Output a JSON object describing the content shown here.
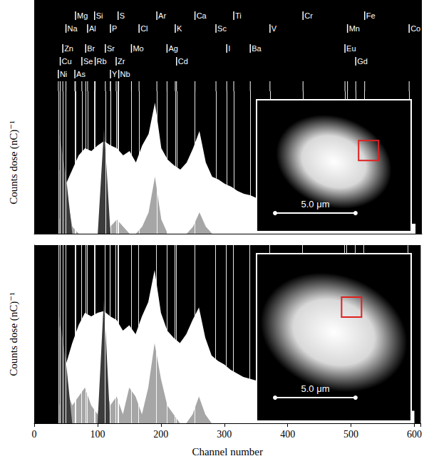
{
  "chart_data": [
    {
      "type": "area",
      "y_label": "Counts dose (nC)⁻¹",
      "x": [
        40,
        50,
        60,
        70,
        80,
        90,
        100,
        110,
        120,
        130,
        140,
        150,
        160,
        170,
        180,
        190,
        200,
        210,
        220,
        230,
        240,
        250,
        260,
        270,
        280,
        290,
        300,
        310,
        320,
        330,
        340,
        350,
        360,
        370,
        380,
        390,
        400,
        410,
        420,
        430,
        440,
        450,
        460,
        470,
        480,
        490,
        500,
        510,
        520,
        530,
        540,
        550,
        560,
        570,
        580,
        590,
        600
      ],
      "series": [
        {
          "color": "#ffffff",
          "values": [
            10,
            35,
            45,
            55,
            60,
            58,
            62,
            65,
            62,
            60,
            55,
            58,
            50,
            62,
            70,
            92,
            60,
            52,
            48,
            45,
            50,
            60,
            72,
            50,
            40,
            38,
            35,
            33,
            30,
            28,
            27,
            25,
            24,
            22,
            21,
            20,
            19,
            18,
            17,
            16,
            15,
            14,
            13,
            13,
            12,
            12,
            11,
            11,
            10,
            10,
            9,
            9,
            8,
            8,
            8,
            7,
            7
          ]
        },
        {
          "color": "#a6a6a6",
          "values": [
            45,
            30,
            5,
            0,
            0,
            0,
            0,
            0,
            5,
            10,
            5,
            0,
            0,
            5,
            15,
            40,
            10,
            0,
            0,
            0,
            0,
            5,
            15,
            5,
            0,
            0,
            0,
            0,
            0,
            0,
            0,
            0,
            0,
            0,
            0,
            0,
            0,
            0,
            0,
            0,
            0,
            0,
            0,
            0,
            0,
            0,
            0,
            0,
            0,
            0,
            0,
            0,
            0,
            0,
            0,
            0,
            0
          ]
        },
        {
          "color": "#3c3c3c",
          "values": [
            70,
            40,
            0,
            0,
            0,
            0,
            0,
            75,
            0,
            0,
            0,
            0,
            0,
            0,
            0,
            0,
            0,
            0,
            0,
            0,
            0,
            0,
            0,
            0,
            0,
            0,
            0,
            0,
            0,
            0,
            0,
            0,
            0,
            0,
            0,
            0,
            0,
            0,
            0,
            0,
            0,
            0,
            0,
            0,
            0,
            0,
            0,
            0,
            0,
            0,
            0,
            0,
            0,
            0,
            0,
            0,
            0
          ]
        }
      ],
      "xlim": [
        0,
        610
      ],
      "xticks": [
        0,
        100,
        200,
        300,
        400,
        500,
        600
      ],
      "ylim": [
        0,
        100
      ],
      "tick_labels": false,
      "inset": {
        "scale_label": "5.0 μm"
      }
    },
    {
      "type": "area",
      "x_label": "Channel number",
      "y_label": "Counts dose (nC)⁻¹",
      "x": [
        40,
        50,
        60,
        70,
        80,
        90,
        100,
        110,
        120,
        130,
        140,
        150,
        160,
        170,
        180,
        190,
        200,
        210,
        220,
        230,
        240,
        250,
        260,
        270,
        280,
        290,
        300,
        310,
        320,
        330,
        340,
        350,
        360,
        370,
        380,
        390,
        400,
        410,
        420,
        430,
        440,
        450,
        460,
        470,
        480,
        490,
        500,
        510,
        520,
        530,
        540,
        550,
        560,
        570,
        580,
        590,
        600
      ],
      "series": [
        {
          "color": "#ffffff",
          "values": [
            10,
            33,
            45,
            55,
            62,
            60,
            62,
            63,
            60,
            58,
            52,
            55,
            50,
            60,
            68,
            86,
            62,
            52,
            48,
            45,
            50,
            58,
            65,
            48,
            38,
            35,
            33,
            30,
            28,
            26,
            25,
            24,
            22,
            21,
            20,
            19,
            18,
            17,
            16,
            15,
            14,
            13,
            13,
            12,
            12,
            11,
            11,
            10,
            10,
            9,
            9,
            8,
            8,
            8,
            7,
            7,
            7
          ]
        },
        {
          "color": "#a6a6a6",
          "values": [
            55,
            20,
            10,
            15,
            20,
            10,
            5,
            25,
            10,
            15,
            5,
            20,
            15,
            5,
            20,
            45,
            25,
            10,
            5,
            0,
            0,
            5,
            15,
            5,
            0,
            0,
            0,
            0,
            0,
            0,
            0,
            0,
            0,
            0,
            0,
            0,
            0,
            0,
            0,
            0,
            0,
            0,
            0,
            0,
            0,
            0,
            0,
            0,
            0,
            0,
            0,
            0,
            0,
            0,
            0,
            0,
            0
          ]
        },
        {
          "color": "#3c3c3c",
          "values": [
            60,
            35,
            0,
            0,
            0,
            0,
            0,
            70,
            0,
            0,
            0,
            0,
            0,
            0,
            0,
            0,
            0,
            0,
            0,
            0,
            0,
            0,
            0,
            0,
            0,
            0,
            0,
            0,
            0,
            0,
            0,
            0,
            0,
            0,
            0,
            0,
            0,
            0,
            0,
            0,
            0,
            0,
            0,
            0,
            0,
            0,
            0,
            0,
            0,
            0,
            0,
            0,
            0,
            0,
            0,
            0,
            0
          ]
        }
      ],
      "xlim": [
        0,
        610
      ],
      "xticks": [
        0,
        100,
        200,
        300,
        400,
        500,
        600
      ],
      "ylim": [
        0,
        100
      ],
      "tick_labels": "x",
      "inset": {
        "scale_label": "5.0 μm"
      }
    }
  ],
  "element_labels": [
    [
      {
        "text": "Mg",
        "x": 65
      },
      {
        "text": "Si",
        "x": 95
      },
      {
        "text": "S",
        "x": 132
      },
      {
        "text": "Ar",
        "x": 193
      },
      {
        "text": "Ca",
        "x": 253
      },
      {
        "text": "Ti",
        "x": 314
      },
      {
        "text": "Cr",
        "x": 423
      },
      {
        "text": "Fe",
        "x": 520
      }
    ],
    [
      {
        "text": "Na",
        "x": 50
      },
      {
        "text": "Al",
        "x": 84
      },
      {
        "text": "P",
        "x": 120
      },
      {
        "text": "Cl",
        "x": 165
      },
      {
        "text": "K",
        "x": 222
      },
      {
        "text": "Sc",
        "x": 286
      },
      {
        "text": "V",
        "x": 371
      },
      {
        "text": "Mn",
        "x": 493
      },
      {
        "text": "Co",
        "x": 590
      }
    ],
    [
      {
        "text": "Zn",
        "x": 45
      },
      {
        "text": "Br",
        "x": 81
      },
      {
        "text": "Sr",
        "x": 112
      },
      {
        "text": "Mo",
        "x": 153
      },
      {
        "text": "Ag",
        "x": 209
      },
      {
        "text": "I",
        "x": 303
      },
      {
        "text": "Ba",
        "x": 340
      },
      {
        "text": "Eu",
        "x": 489
      }
    ],
    [
      {
        "text": "Cu",
        "x": 41
      },
      {
        "text": "Se",
        "x": 75
      },
      {
        "text": "Rb",
        "x": 96
      },
      {
        "text": "Zr",
        "x": 129
      },
      {
        "text": "Cd",
        "x": 224
      },
      {
        "text": "Gd",
        "x": 506
      }
    ],
    [
      {
        "text": "Ni",
        "x": 38
      },
      {
        "text": "As",
        "x": 64
      },
      {
        "text": "Y",
        "x": 120
      },
      {
        "text": "Nb",
        "x": 133
      }
    ]
  ]
}
